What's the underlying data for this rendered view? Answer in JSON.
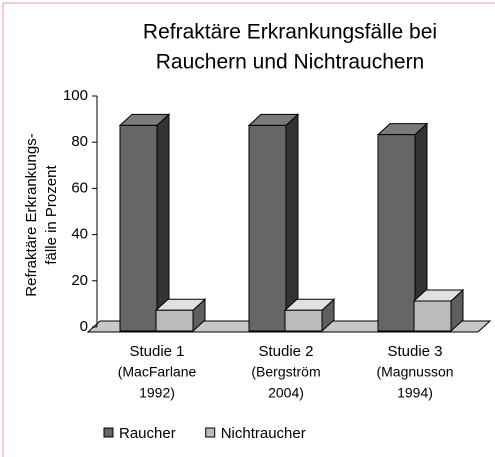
{
  "chart_data": {
    "type": "bar3d",
    "title": [
      "Refraktäre Erkrankungsfälle bei",
      "Rauchern und Nichtrauchern"
    ],
    "y_label": [
      "Refraktäre Erkrankungs-",
      "fälle in Prozent"
    ],
    "categories": [
      [
        "Studie 1",
        "(MacFarlane",
        "1992)"
      ],
      [
        "Studie 2",
        "(Bergström",
        "2004)"
      ],
      [
        "Studie 3",
        "(Magnusson",
        "1994)"
      ]
    ],
    "series": [
      {
        "name": "Raucher",
        "color": "#666666",
        "values": [
          89,
          89,
          85
        ]
      },
      {
        "name": "Nichtraucher",
        "color": "#bbbbbb",
        "values": [
          9,
          9,
          13
        ]
      }
    ],
    "ylim": [
      0,
      100
    ],
    "yticks": [
      0,
      20,
      40,
      60,
      80,
      100
    ],
    "legend": "bottom"
  }
}
